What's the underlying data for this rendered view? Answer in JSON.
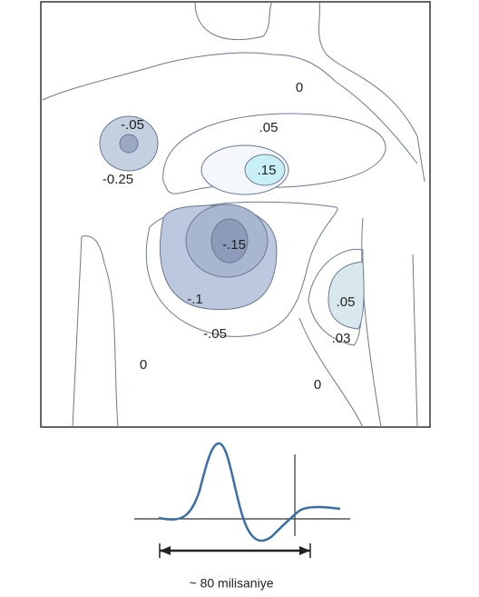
{
  "contour_labels": [
    "0",
    ".05",
    "-.05",
    "-0.25",
    ".15",
    "-.15",
    "-.1",
    "-.05",
    ".05",
    ".03",
    "0",
    "0"
  ],
  "caption": "~ 80 milisaniye"
}
